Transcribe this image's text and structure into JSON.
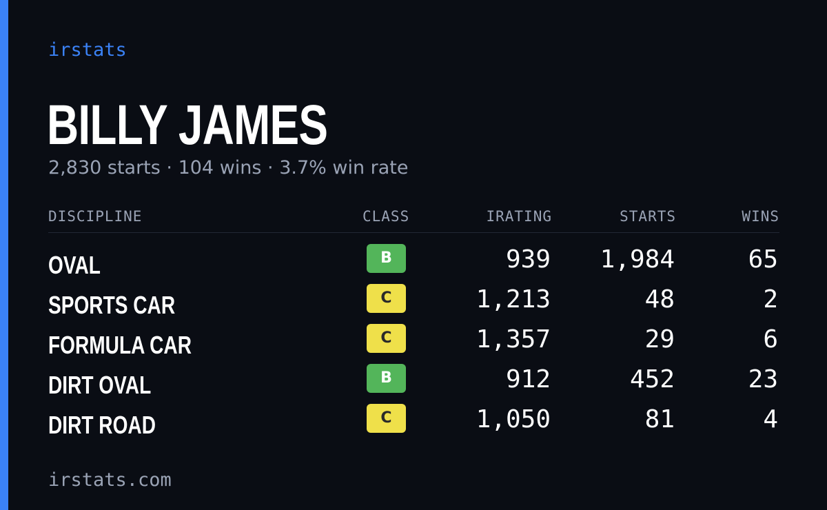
{
  "brand": "irstats",
  "driver": {
    "name": "BILLY JAMES",
    "summary": "2,830 starts · 104 wins · 3.7% win rate"
  },
  "table": {
    "headers": {
      "discipline": "DISCIPLINE",
      "class": "CLASS",
      "irating": "IRATING",
      "starts": "STARTS",
      "wins": "WINS"
    },
    "rows": [
      {
        "discipline": "OVAL",
        "class": "B",
        "irating": "939",
        "starts": "1,984",
        "wins": "65"
      },
      {
        "discipline": "SPORTS CAR",
        "class": "C",
        "irating": "1,213",
        "starts": "48",
        "wins": "2"
      },
      {
        "discipline": "FORMULA CAR",
        "class": "C",
        "irating": "1,357",
        "starts": "29",
        "wins": "6"
      },
      {
        "discipline": "DIRT OVAL",
        "class": "B",
        "irating": "912",
        "starts": "452",
        "wins": "23"
      },
      {
        "discipline": "DIRT ROAD",
        "class": "C",
        "irating": "1,050",
        "starts": "81",
        "wins": "4"
      }
    ]
  },
  "footer": "irstats.com",
  "colors": {
    "background": "#0a0d14",
    "accent": "#3b82f6",
    "class_b": "#53b55a",
    "class_c": "#efe04a",
    "muted_text": "#9aa3b5"
  }
}
